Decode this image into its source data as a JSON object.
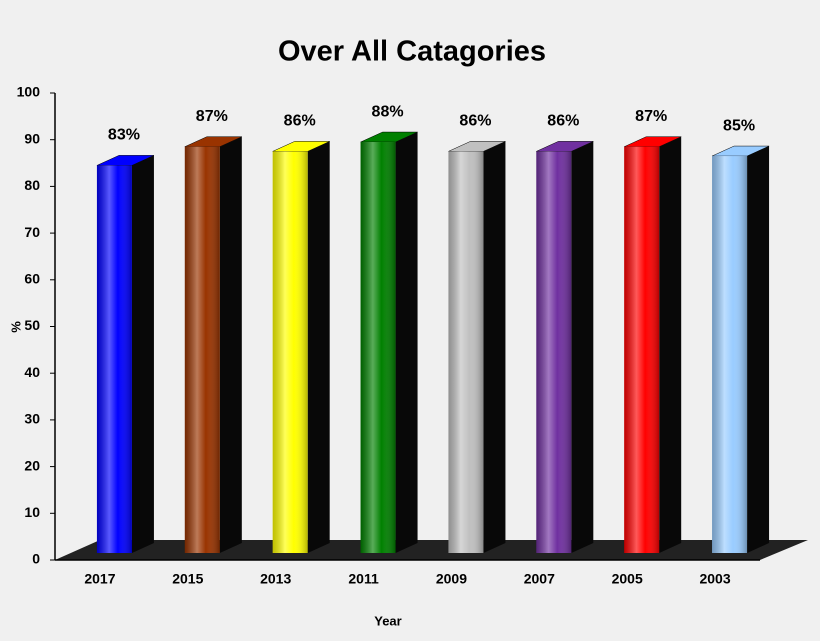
{
  "chart_data": {
    "type": "bar3d",
    "title": "Over All Catagories",
    "x_label": "Year",
    "y_label": "%",
    "categories": [
      "2017",
      "2015",
      "2013",
      "2011",
      "2009",
      "2007",
      "2005",
      "2003"
    ],
    "values": [
      83,
      87,
      86,
      88,
      86,
      86,
      87,
      85
    ],
    "value_labels": [
      "83%",
      "87%",
      "86%",
      "88%",
      "86%",
      "86%",
      "87%",
      "85%"
    ],
    "colors": [
      "#0000ff",
      "#993300",
      "#ffff00",
      "#008000",
      "#c0c0c0",
      "#7030a0",
      "#ff0000",
      "#99ccff"
    ],
    "ylim": [
      0,
      100
    ],
    "yticks": [
      0,
      10,
      20,
      30,
      40,
      50,
      60,
      70,
      80,
      90,
      100
    ]
  }
}
